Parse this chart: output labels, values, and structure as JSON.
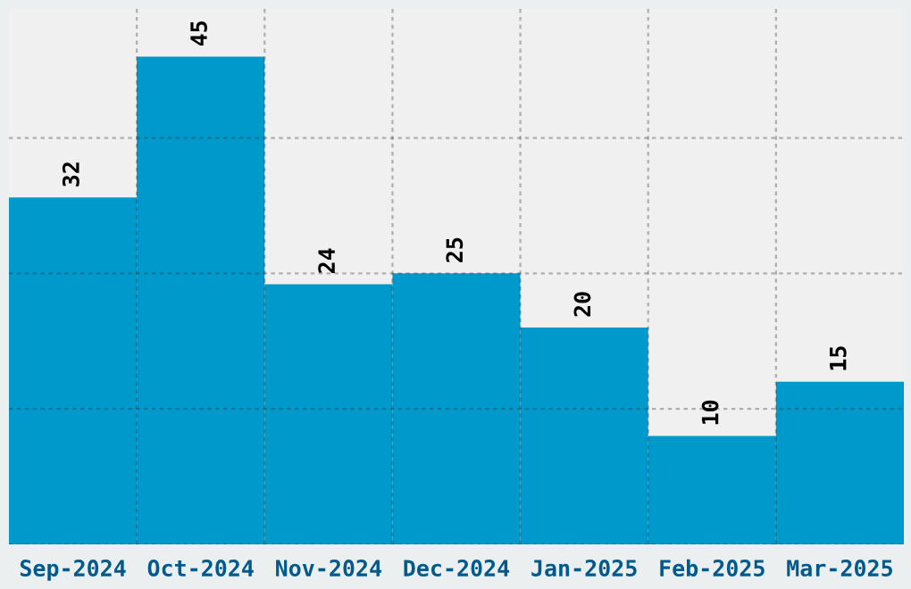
{
  "chart_data": {
    "type": "bar",
    "categories": [
      "Sep-2024",
      "Oct-2024",
      "Nov-2024",
      "Dec-2024",
      "Jan-2025",
      "Feb-2025",
      "Mar-2025"
    ],
    "values": [
      32,
      45,
      24,
      25,
      20,
      10,
      15
    ],
    "color": "#0099cc",
    "ylim": [
      0,
      49.4
    ],
    "yticks": [
      {
        "value": 0,
        "label": null
      },
      {
        "value": 12.5,
        "label": null
      },
      {
        "value": 25,
        "label": null
      },
      {
        "value": 37.5,
        "label": null
      }
    ],
    "tick_labels": "x",
    "grid": true,
    "data_labels": true
  }
}
